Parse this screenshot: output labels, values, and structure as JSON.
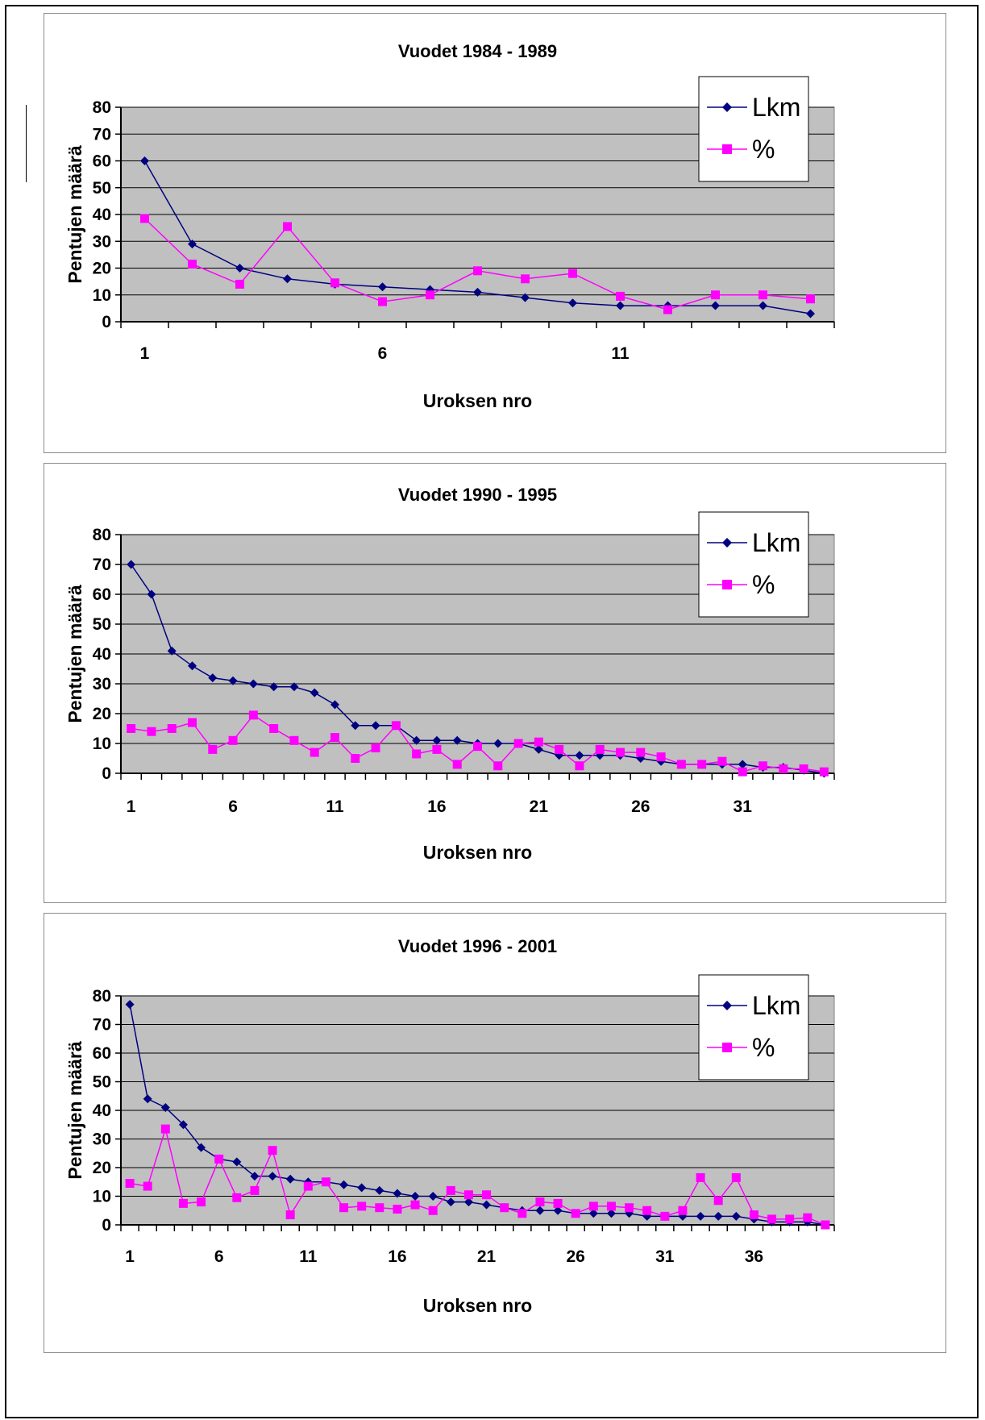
{
  "colors": {
    "plot_background": "#c0c0c0",
    "gridline": "#000000",
    "lkm_series": "#000080",
    "percent_series": "#ff00ff"
  },
  "chart_data": [
    {
      "type": "line",
      "title": "Vuodet 1984 - 1989",
      "xlabel": "Uroksen nro",
      "ylabel": "Pentujen määrä",
      "ylim": [
        0,
        80
      ],
      "yticks": [
        0,
        10,
        20,
        30,
        40,
        50,
        60,
        70,
        80
      ],
      "xticks": [
        "1",
        "6",
        "11"
      ],
      "grid": true,
      "legend": "top-right",
      "x": [
        1,
        2,
        3,
        4,
        5,
        6,
        7,
        8,
        9,
        10,
        11,
        12,
        13,
        14,
        15
      ],
      "series": [
        {
          "name": "Lkm",
          "marker": "diamond",
          "values": [
            60,
            29,
            20,
            16,
            14,
            13,
            12,
            11,
            9,
            7,
            6,
            6,
            6,
            6,
            3
          ]
        },
        {
          "name": "%",
          "marker": "square",
          "values": [
            38.5,
            21.5,
            14,
            35.5,
            14.5,
            7.5,
            10,
            19,
            16,
            18,
            9.5,
            4.5,
            10,
            10,
            8.5
          ]
        }
      ]
    },
    {
      "type": "line",
      "title": "Vuodet 1990 - 1995",
      "xlabel": "Uroksen nro",
      "ylabel": "Pentujen määrä",
      "ylim": [
        0,
        80
      ],
      "yticks": [
        0,
        10,
        20,
        30,
        40,
        50,
        60,
        70,
        80
      ],
      "xticks": [
        "1",
        "6",
        "11",
        "16",
        "21",
        "26",
        "31"
      ],
      "grid": true,
      "legend": "top-right",
      "x": [
        1,
        2,
        3,
        4,
        5,
        6,
        7,
        8,
        9,
        10,
        11,
        12,
        13,
        14,
        15,
        16,
        17,
        18,
        19,
        20,
        21,
        22,
        23,
        24,
        25,
        26,
        27,
        28,
        29,
        30,
        31,
        32,
        33,
        34,
        35
      ],
      "series": [
        {
          "name": "Lkm",
          "marker": "diamond",
          "values": [
            70,
            60,
            41,
            36,
            32,
            31,
            30,
            29,
            29,
            27,
            23,
            16,
            16,
            16,
            11,
            11,
            11,
            10,
            10,
            10,
            8,
            6,
            6,
            6,
            6,
            5,
            4,
            3,
            3,
            3,
            3,
            2,
            2,
            1,
            0
          ]
        },
        {
          "name": "%",
          "marker": "square",
          "values": [
            15,
            14,
            15,
            17,
            8,
            11,
            19.5,
            15,
            11,
            7,
            12,
            5,
            8.5,
            16,
            6.5,
            8,
            3,
            9,
            2.5,
            10,
            10.5,
            8,
            2.5,
            8,
            7,
            7,
            5.5,
            3,
            3,
            4,
            0.5,
            2.5,
            1.5,
            1.5,
            0.5
          ]
        }
      ]
    },
    {
      "type": "line",
      "title": "Vuodet 1996 - 2001",
      "xlabel": "Uroksen nro",
      "ylabel": "Pentujen määrä",
      "ylim": [
        0,
        80
      ],
      "yticks": [
        0,
        10,
        20,
        30,
        40,
        50,
        60,
        70,
        80
      ],
      "xticks": [
        "1",
        "6",
        "11",
        "16",
        "21",
        "26",
        "31",
        "36"
      ],
      "grid": true,
      "legend": "top-right",
      "x": [
        1,
        2,
        3,
        4,
        5,
        6,
        7,
        8,
        9,
        10,
        11,
        12,
        13,
        14,
        15,
        16,
        17,
        18,
        19,
        20,
        21,
        22,
        23,
        24,
        25,
        26,
        27,
        28,
        29,
        30,
        31,
        32,
        33,
        34,
        35,
        36,
        37,
        38,
        39,
        40
      ],
      "series": [
        {
          "name": "Lkm",
          "marker": "diamond",
          "values": [
            77,
            44,
            41,
            35,
            27,
            23,
            22,
            17,
            17,
            16,
            15,
            15,
            14,
            13,
            12,
            11,
            10,
            10,
            8,
            8,
            7,
            6,
            5,
            5,
            5,
            4,
            4,
            4,
            4,
            3,
            3,
            3,
            3,
            3,
            3,
            2,
            1,
            1,
            1,
            0
          ]
        },
        {
          "name": "%",
          "marker": "square",
          "values": [
            14.5,
            13.5,
            33.5,
            7.5,
            8,
            23,
            9.5,
            12,
            26,
            3.5,
            13.5,
            15,
            6,
            6.5,
            6,
            5.5,
            7,
            5,
            12,
            10.5,
            10.5,
            6,
            4,
            8,
            7.5,
            4,
            6.5,
            6.5,
            6,
            5,
            3,
            5,
            16.5,
            8.5,
            16.5,
            3.5,
            2,
            2,
            2.5,
            0
          ]
        }
      ]
    }
  ]
}
